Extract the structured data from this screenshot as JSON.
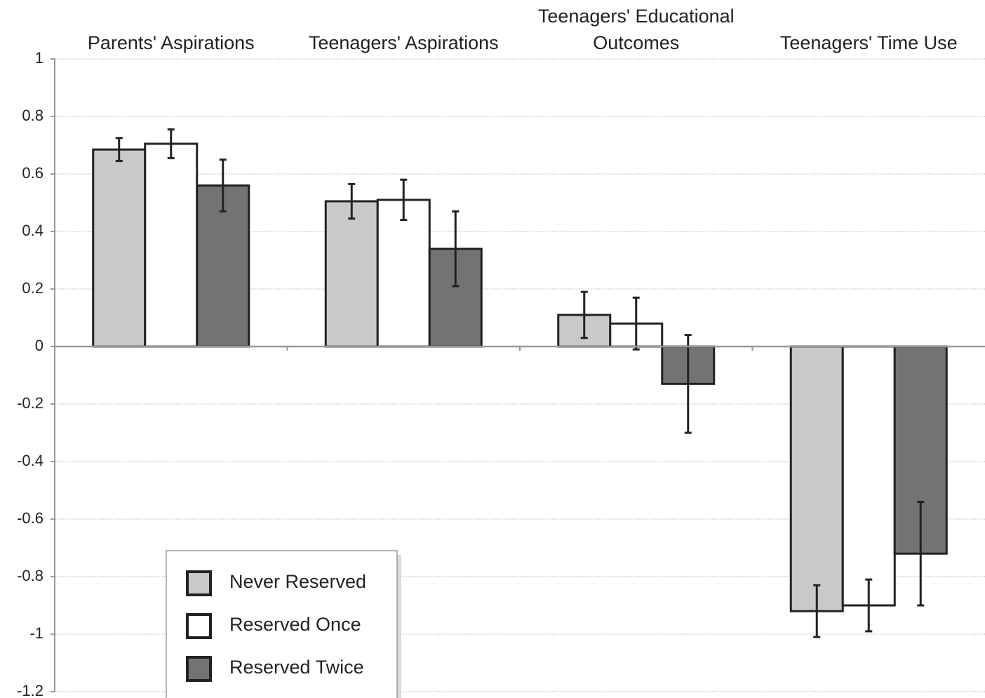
{
  "chart_data": {
    "type": "bar",
    "categories": [
      "Parents' Aspirations",
      "Teenagers' Aspirations",
      "Teenagers' Educational Outcomes",
      "Teenagers' Time Use"
    ],
    "series": [
      {
        "name": "Never Reserved",
        "color": "#c8c9cb",
        "values": [
          0.685,
          0.505,
          0.11,
          -0.92
        ],
        "errors": [
          0.04,
          0.06,
          0.08,
          0.09
        ]
      },
      {
        "name": "Reserved Once",
        "color": "#ffffff",
        "values": [
          0.705,
          0.51,
          0.08,
          -0.9
        ],
        "errors": [
          0.05,
          0.07,
          0.09,
          0.09
        ]
      },
      {
        "name": "Reserved Twice",
        "color": "#737373",
        "values": [
          0.56,
          0.34,
          -0.13,
          -0.72
        ],
        "errors": [
          0.09,
          0.13,
          0.17,
          0.18
        ]
      }
    ],
    "ylim": [
      -1.2,
      1
    ],
    "yticks": [
      1,
      0.8,
      0.6,
      0.4,
      0.2,
      0,
      -0.2,
      -0.4,
      -0.6,
      -0.8,
      -1,
      -1.2
    ],
    "grid": true,
    "legend": "lower left"
  }
}
